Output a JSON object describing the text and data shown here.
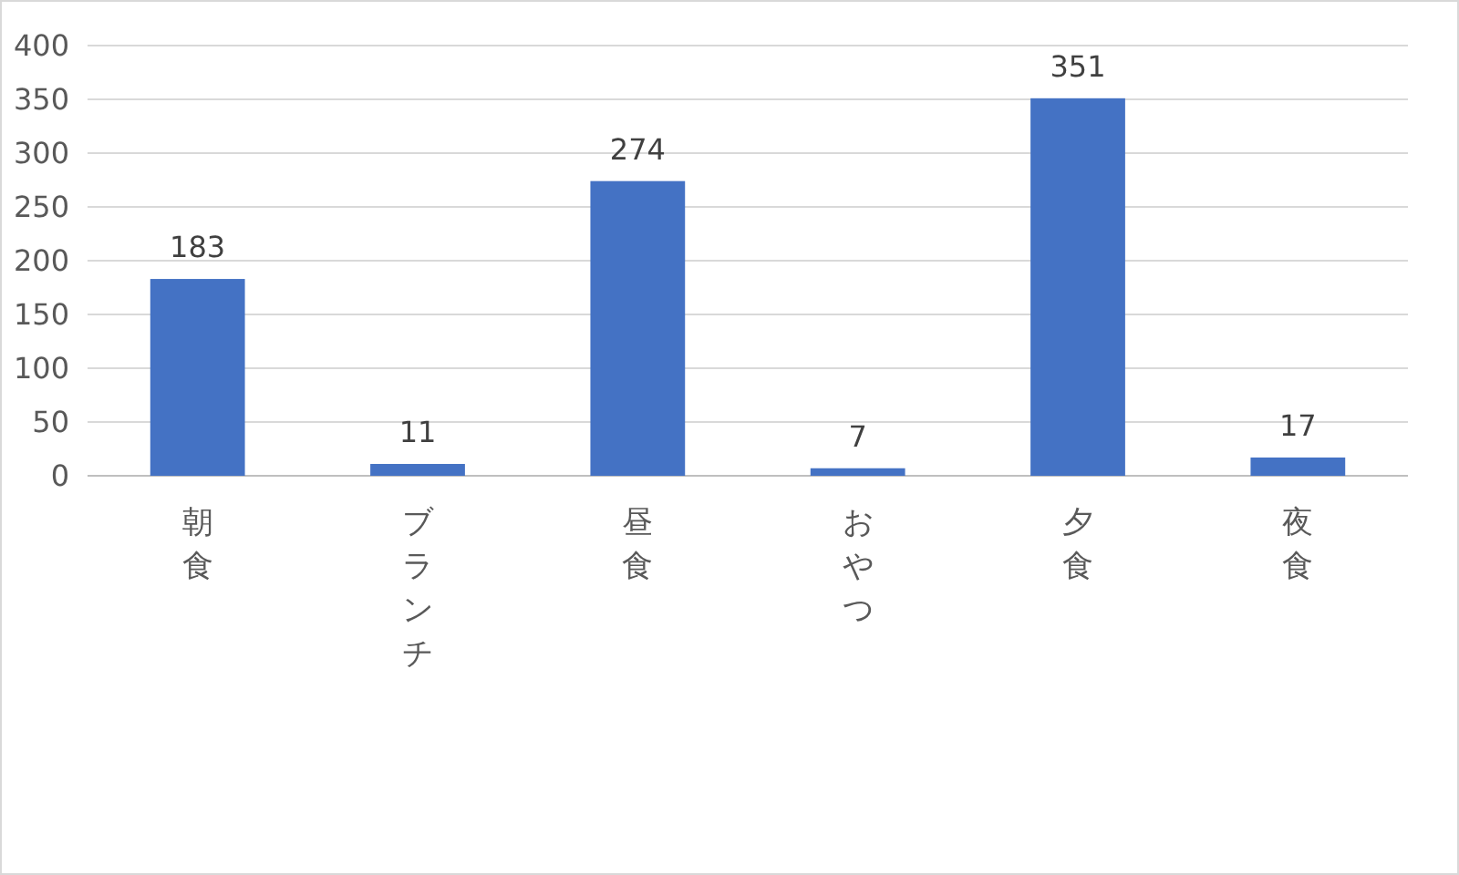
{
  "chart_data": {
    "type": "bar",
    "categories": [
      "朝食",
      "ブランチ",
      "昼食",
      "おやつ",
      "夕食",
      "夜食"
    ],
    "values": [
      183,
      11,
      274,
      7,
      351,
      17
    ],
    "color": "#4472c4",
    "ylim": [
      0,
      400
    ],
    "yticks": [
      0,
      50,
      100,
      150,
      200,
      250,
      300,
      350,
      400
    ],
    "grid": "y",
    "data_labels": true
  }
}
